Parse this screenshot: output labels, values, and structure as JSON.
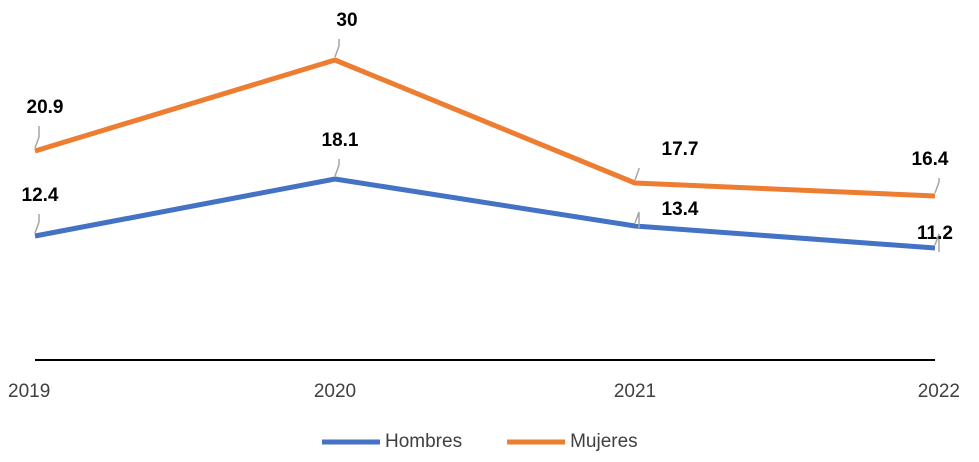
{
  "chart_data": {
    "type": "line",
    "categories": [
      "2019",
      "2020",
      "2021",
      "2022"
    ],
    "series": [
      {
        "name": "Hombres",
        "color": "#4472c4",
        "values": [
          12.4,
          18.1,
          13.4,
          11.2
        ]
      },
      {
        "name": "Mujeres",
        "color": "#ed7d31",
        "values": [
          20.9,
          30,
          17.7,
          16.4
        ]
      }
    ],
    "ylim": [
      0,
      35
    ],
    "grid": false,
    "legend": "bottom"
  }
}
